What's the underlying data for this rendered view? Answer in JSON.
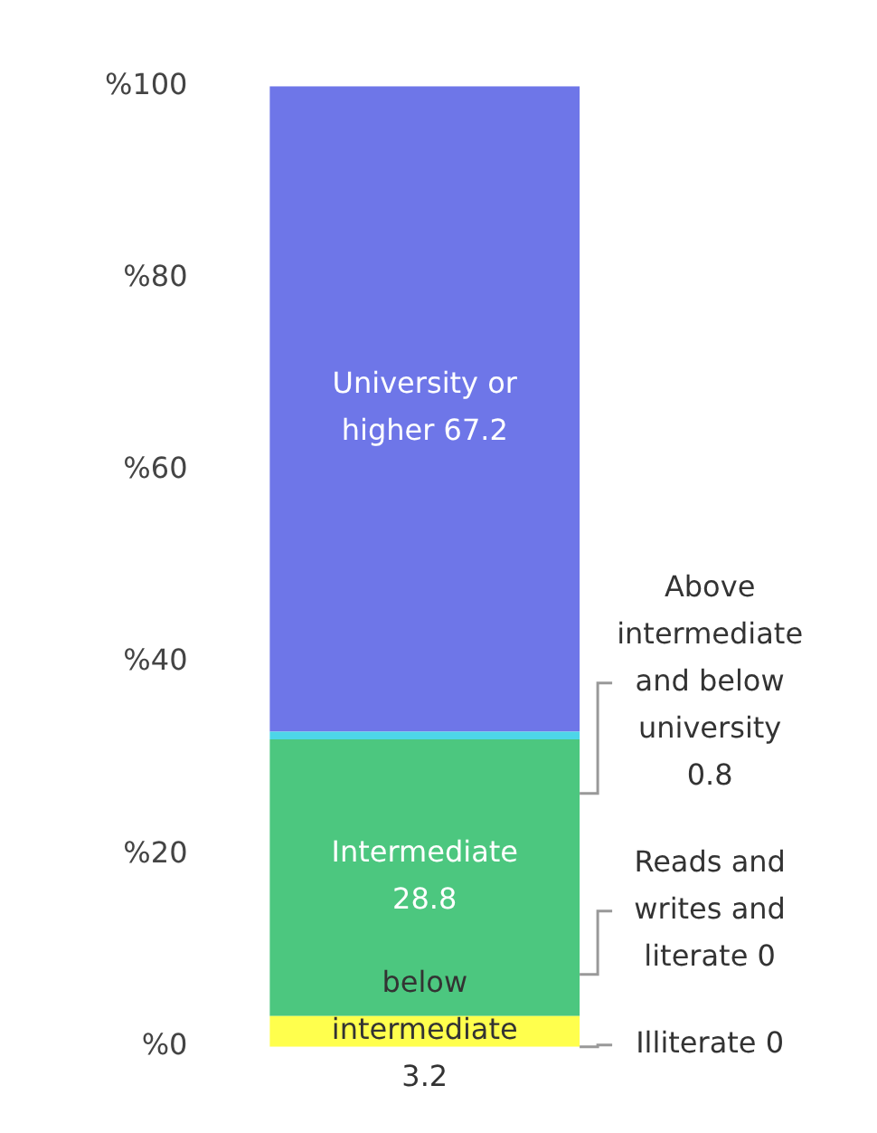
{
  "chart_data": {
    "type": "bar",
    "stacked": true,
    "categories": [
      null
    ],
    "series": [
      {
        "name": "below intermediate",
        "color": "#ffff4d",
        "values": [
          3.2
        ],
        "value_labels": [
          "3.2"
        ]
      },
      {
        "name": "Intermediate",
        "color": "#4cc77f",
        "values": [
          28.8
        ],
        "value_labels": [
          "28.8"
        ]
      },
      {
        "color": "#4dd6e8",
        "values": [
          0.8
        ]
      },
      {
        "name": "University or higher",
        "color": "#6e76e8",
        "values": [
          67.2
        ],
        "value_labels": [
          "67.2"
        ]
      }
    ],
    "ylim": [
      0,
      100
    ],
    "yticks": [
      {
        "value": 0,
        "label": "%0"
      },
      {
        "value": 20,
        "label": "%20"
      },
      {
        "value": 40,
        "label": "%40"
      },
      {
        "value": 60,
        "label": "%60"
      },
      {
        "value": 80,
        "label": "%80"
      },
      {
        "value": 100,
        "label": "%100"
      }
    ],
    "annotations": [
      "Illiterate 0",
      "Reads and writes and literate 0",
      "Above intermediate and below university 0.8"
    ],
    "grid": false,
    "legend": false
  }
}
